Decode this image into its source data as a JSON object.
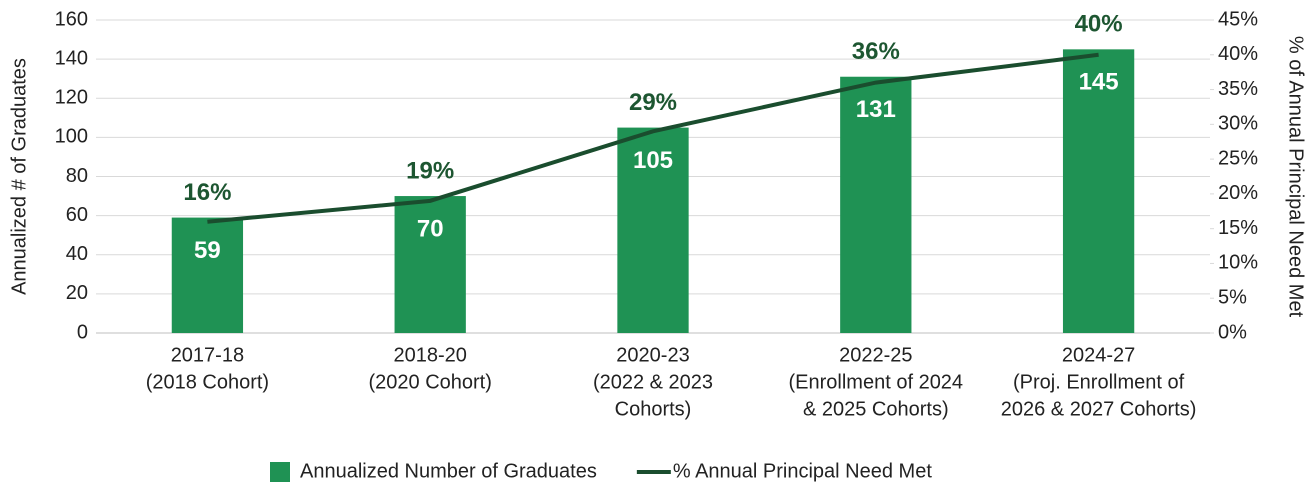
{
  "chart_data": {
    "type": "bar_line",
    "categories": [
      [
        "2017-18",
        "(2018 Cohort)"
      ],
      [
        "2018-20",
        "(2020 Cohort)"
      ],
      [
        "2020-23",
        "(2022 & 2023",
        "Cohorts)"
      ],
      [
        "2022-25",
        "(Enrollment of 2024",
        "& 2025 Cohorts)"
      ],
      [
        "2024-27",
        "(Proj. Enrollment of",
        "2026 & 2027 Cohorts)"
      ]
    ],
    "series": [
      {
        "name": "Annualized Number of Graduates",
        "type": "bar",
        "color": "#1f9254",
        "values": [
          59,
          70,
          105,
          131,
          145
        ]
      },
      {
        "name": "% Annual Principal Need Met",
        "type": "line",
        "axis": "y2",
        "color": "#1a4d2e",
        "values": [
          16,
          19,
          29,
          36,
          40
        ],
        "value_labels": [
          "16%",
          "19%",
          "29%",
          "36%",
          "40%"
        ]
      }
    ],
    "ylabel": "Annualized # of Graduates",
    "y2label": "% of Annual Principal Need Met",
    "ylim": [
      0,
      160
    ],
    "yticks": [
      0,
      20,
      40,
      60,
      80,
      100,
      120,
      140,
      160
    ],
    "y2lim": [
      0,
      45
    ],
    "y2ticks": [
      {
        "value": 0,
        "label": "0%"
      },
      {
        "value": 5,
        "label": "5%"
      },
      {
        "value": 10,
        "label": "10%"
      },
      {
        "value": 15,
        "label": "15%"
      },
      {
        "value": 20,
        "label": "20%"
      },
      {
        "value": 25,
        "label": "25%"
      },
      {
        "value": 30,
        "label": "30%"
      },
      {
        "value": 35,
        "label": "35%"
      },
      {
        "value": 40,
        "label": "40%"
      },
      {
        "value": 45,
        "label": "45%"
      }
    ],
    "grid": true,
    "legend": "bottom"
  }
}
